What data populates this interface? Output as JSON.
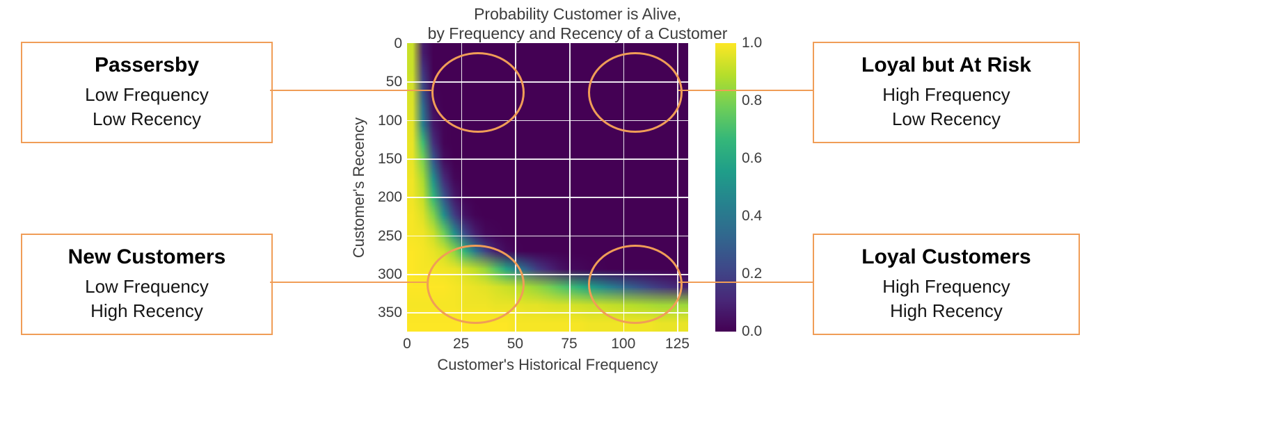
{
  "colors": {
    "accent_orange": "#F09D57",
    "grid_line": "#ffffff",
    "axis_text": "#3c3c3c",
    "heatmap_low": "#440154",
    "heatmap_high": "#fde725"
  },
  "annotations": {
    "passersby": {
      "title": "Passersby",
      "line1": "Low Frequency",
      "line2": "Low Recency"
    },
    "loyal_at_risk": {
      "title": "Loyal but At Risk",
      "line1": "High Frequency",
      "line2": "Low Recency"
    },
    "new_customers": {
      "title": "New Customers",
      "line1": "Low Frequency",
      "line2": "High Recency"
    },
    "loyal_customers": {
      "title": "Loyal Customers",
      "line1": "High Frequency",
      "line2": "High Recency"
    }
  },
  "chart_data": {
    "type": "heatmap",
    "title": "Probability Customer is Alive, by Frequency and Recency of a Customer",
    "title_lines": [
      "Probability Customer is Alive,",
      "by Frequency and Recency of a Customer"
    ],
    "xlabel": "Customer's Historical Frequency",
    "ylabel": "Customer's Recency",
    "xlim": [
      0,
      130
    ],
    "ylim": [
      0,
      375
    ],
    "y_axis_inverted": true,
    "grid": true,
    "x_ticks": [
      0,
      25,
      50,
      75,
      100,
      125
    ],
    "y_ticks": [
      0,
      50,
      100,
      150,
      200,
      250,
      300,
      350
    ],
    "colorbar_position": "right",
    "colorbar_range": [
      0.0,
      1.0
    ],
    "colorbar_tick_labels": [
      "0.0",
      "0.2",
      "0.4",
      "0.6",
      "0.8",
      "1.0"
    ],
    "colormap": "viridis",
    "colormap_stops": [
      "#440154",
      "#482878",
      "#3e4989",
      "#31688e",
      "#26828e",
      "#1f9e89",
      "#35b779",
      "#6ece58",
      "#b5de2b",
      "#fde725"
    ],
    "x_values": {
      "start": 0,
      "stop": 130,
      "step": 5
    },
    "y_values": {
      "start": 0,
      "stop": 375,
      "step": 25
    },
    "values_description": "P(alive) sampled on frequency (columns, 0-130 step 5) x recency (rows, 0-375 step 25) grid, estimated from the rendered image",
    "values": [
      [
        0.92,
        0.08,
        0,
        0,
        0,
        0,
        0,
        0,
        0,
        0,
        0,
        0,
        0,
        0,
        0,
        0,
        0,
        0,
        0,
        0,
        0,
        0,
        0,
        0,
        0,
        0,
        0
      ],
      [
        0.92,
        0.16,
        0,
        0,
        0,
        0,
        0,
        0,
        0,
        0,
        0,
        0,
        0,
        0,
        0,
        0,
        0,
        0,
        0,
        0,
        0,
        0,
        0,
        0,
        0,
        0,
        0
      ],
      [
        0.94,
        0.24,
        0.01,
        0,
        0,
        0,
        0,
        0,
        0,
        0,
        0,
        0,
        0,
        0,
        0,
        0,
        0,
        0,
        0,
        0,
        0,
        0,
        0,
        0,
        0,
        0,
        0
      ],
      [
        0.95,
        0.36,
        0.03,
        0,
        0,
        0,
        0,
        0,
        0,
        0,
        0,
        0,
        0,
        0,
        0,
        0,
        0,
        0,
        0,
        0,
        0,
        0,
        0,
        0,
        0,
        0,
        0
      ],
      [
        0.96,
        0.43,
        0.07,
        0.01,
        0,
        0,
        0,
        0,
        0,
        0,
        0,
        0,
        0,
        0,
        0,
        0,
        0,
        0,
        0,
        0,
        0,
        0,
        0,
        0,
        0,
        0,
        0
      ],
      [
        0.97,
        0.69,
        0.14,
        0.01,
        0,
        0,
        0,
        0,
        0,
        0,
        0,
        0,
        0,
        0,
        0,
        0,
        0,
        0,
        0,
        0,
        0,
        0,
        0,
        0,
        0,
        0,
        0
      ],
      [
        0.97,
        0.8,
        0.29,
        0.04,
        0,
        0,
        0,
        0,
        0,
        0,
        0,
        0,
        0,
        0,
        0,
        0,
        0,
        0,
        0,
        0,
        0,
        0,
        0,
        0,
        0,
        0,
        0
      ],
      [
        0.98,
        0.87,
        0.5,
        0.13,
        0.02,
        0,
        0,
        0,
        0,
        0,
        0,
        0,
        0,
        0,
        0,
        0,
        0,
        0,
        0,
        0,
        0,
        0,
        0,
        0,
        0,
        0,
        0
      ],
      [
        0.98,
        0.91,
        0.66,
        0.27,
        0.07,
        0.01,
        0,
        0,
        0,
        0,
        0,
        0,
        0,
        0,
        0,
        0,
        0,
        0,
        0,
        0,
        0,
        0,
        0,
        0,
        0,
        0,
        0
      ],
      [
        0.99,
        0.95,
        0.81,
        0.5,
        0.19,
        0.05,
        0.01,
        0,
        0,
        0,
        0,
        0,
        0,
        0,
        0,
        0,
        0,
        0,
        0,
        0,
        0,
        0,
        0,
        0,
        0,
        0,
        0
      ],
      [
        0.99,
        0.98,
        0.92,
        0.78,
        0.5,
        0.22,
        0.08,
        0.02,
        0.01,
        0,
        0,
        0,
        0,
        0,
        0,
        0,
        0,
        0,
        0,
        0,
        0,
        0,
        0,
        0,
        0,
        0,
        0
      ],
      [
        1,
        0.99,
        0.97,
        0.93,
        0.83,
        0.65,
        0.4,
        0.2,
        0.08,
        0.03,
        0.01,
        0,
        0,
        0,
        0,
        0,
        0,
        0,
        0,
        0,
        0,
        0,
        0,
        0,
        0,
        0,
        0
      ],
      [
        1,
        0.99,
        0.99,
        0.98,
        0.97,
        0.94,
        0.9,
        0.84,
        0.73,
        0.59,
        0.44,
        0.3,
        0.18,
        0.11,
        0.06,
        0.03,
        0.02,
        0.01,
        0.01,
        0,
        0,
        0,
        0,
        0,
        0,
        0,
        0
      ],
      [
        1,
        1,
        1,
        1,
        0.99,
        0.98,
        0.97,
        0.96,
        0.94,
        0.92,
        0.9,
        0.87,
        0.84,
        0.8,
        0.75,
        0.7,
        0.64,
        0.57,
        0.5,
        0.43,
        0.36,
        0.3,
        0.25,
        0.2,
        0.16,
        0.13,
        0.1
      ],
      [
        0.99,
        0.99,
        0.99,
        0.99,
        0.99,
        0.98,
        0.98,
        0.98,
        0.97,
        0.97,
        0.97,
        0.96,
        0.96,
        0.95,
        0.94,
        0.94,
        0.93,
        0.92,
        0.92,
        0.91,
        0.9,
        0.89,
        0.88,
        0.87,
        0.86,
        0.86,
        0.85
      ],
      [
        1,
        1,
        1,
        1,
        1,
        1,
        1,
        1,
        1,
        1,
        0.99,
        0.99,
        0.99,
        0.99,
        0.99,
        0.99,
        0.99,
        0.98,
        0.98,
        0.98,
        0.98,
        0.98,
        0.98,
        0.98,
        0.97,
        0.97,
        0.97
      ]
    ]
  }
}
